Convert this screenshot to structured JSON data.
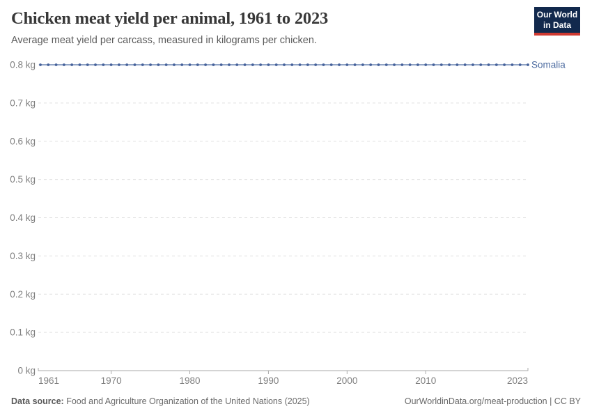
{
  "header": {
    "title": "Chicken meat yield per animal, 1961 to 2023",
    "subtitle": "Average meat yield per carcass, measured in kilograms per chicken.",
    "logo_line1": "Our World",
    "logo_line2": "in Data"
  },
  "colors": {
    "logo_bg": "#12294d",
    "logo_accent": "#cf3a31",
    "series_line": "#6f87b4",
    "series_dot": "#46629b",
    "entity_label": "#4c6ba0",
    "gridline": "#e0e0e0",
    "axis_line": "#a9a9a9",
    "axis_text": "#7e7e7e"
  },
  "chart_data": {
    "type": "line",
    "title": "Chicken meat yield per animal, 1961 to 2023",
    "subtitle": "Average meat yield per carcass, measured in kilograms per chicken.",
    "unit": "kg",
    "xlim": [
      1961,
      2023
    ],
    "ylim": [
      0,
      0.8
    ],
    "grid": "horizontal-dashed",
    "legend_position": "end-of-line-label",
    "x": [
      1961,
      1962,
      1963,
      1964,
      1965,
      1966,
      1967,
      1968,
      1969,
      1970,
      1971,
      1972,
      1973,
      1974,
      1975,
      1976,
      1977,
      1978,
      1979,
      1980,
      1981,
      1982,
      1983,
      1984,
      1985,
      1986,
      1987,
      1988,
      1989,
      1990,
      1991,
      1992,
      1993,
      1994,
      1995,
      1996,
      1997,
      1998,
      1999,
      2000,
      2001,
      2002,
      2003,
      2004,
      2005,
      2006,
      2007,
      2008,
      2009,
      2010,
      2011,
      2012,
      2013,
      2014,
      2015,
      2016,
      2017,
      2018,
      2019,
      2020,
      2021,
      2022,
      2023
    ],
    "series": [
      {
        "name": "Somalia",
        "values": [
          0.8,
          0.8,
          0.8,
          0.8,
          0.8,
          0.8,
          0.8,
          0.8,
          0.8,
          0.8,
          0.8,
          0.8,
          0.8,
          0.8,
          0.8,
          0.8,
          0.8,
          0.8,
          0.8,
          0.8,
          0.8,
          0.8,
          0.8,
          0.8,
          0.8,
          0.8,
          0.8,
          0.8,
          0.8,
          0.8,
          0.8,
          0.8,
          0.8,
          0.8,
          0.8,
          0.8,
          0.8,
          0.8,
          0.8,
          0.8,
          0.8,
          0.8,
          0.8,
          0.8,
          0.8,
          0.8,
          0.8,
          0.8,
          0.8,
          0.8,
          0.8,
          0.8,
          0.8,
          0.8,
          0.8,
          0.8,
          0.8,
          0.8,
          0.8,
          0.8,
          0.8,
          0.8,
          0.8
        ]
      }
    ],
    "yticks": [
      {
        "v": 0,
        "label": "0 kg"
      },
      {
        "v": 0.1,
        "label": "0.1 kg"
      },
      {
        "v": 0.2,
        "label": "0.2 kg"
      },
      {
        "v": 0.3,
        "label": "0.3 kg"
      },
      {
        "v": 0.4,
        "label": "0.4 kg"
      },
      {
        "v": 0.5,
        "label": "0.5 kg"
      },
      {
        "v": 0.6,
        "label": "0.6 kg"
      },
      {
        "v": 0.7,
        "label": "0.7 kg"
      },
      {
        "v": 0.8,
        "label": "0.8 kg"
      }
    ],
    "xticks": [
      {
        "v": 1961,
        "label": "1961"
      },
      {
        "v": 1970,
        "label": "1970"
      },
      {
        "v": 1980,
        "label": "1980"
      },
      {
        "v": 1990,
        "label": "1990"
      },
      {
        "v": 2000,
        "label": "2000"
      },
      {
        "v": 2010,
        "label": "2010"
      },
      {
        "v": 2023,
        "label": "2023"
      }
    ]
  },
  "footer": {
    "source_label": "Data source:",
    "source_text": " Food and Agriculture Organization of the United Nations (2025)",
    "right_text": "OurWorldinData.org/meat-production | CC BY"
  }
}
